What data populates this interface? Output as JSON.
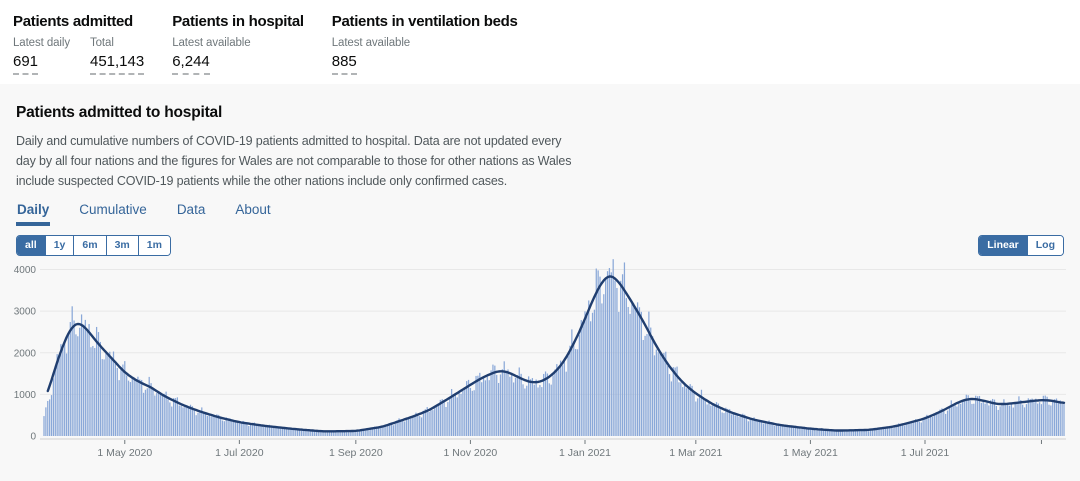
{
  "accent_color": "#3a6ca3",
  "header_metrics": [
    {
      "title": "Patients admitted",
      "stats": [
        {
          "label": "Latest daily",
          "value": "691"
        },
        {
          "label": "Total",
          "value": "451,143"
        }
      ]
    },
    {
      "title": "Patients in hospital",
      "stats": [
        {
          "label": "Latest available",
          "value": "6,244"
        }
      ]
    },
    {
      "title": "Patients in ventilation beds",
      "stats": [
        {
          "label": "Latest available",
          "value": "885"
        }
      ]
    }
  ],
  "card": {
    "title": "Patients admitted to hospital",
    "description": "Daily and cumulative numbers of COVID-19 patients admitted to hospital. Data are not updated every day by all four nations and the figures for Wales are not comparable to those for other nations as Wales include suspected COVID-19 patients while the other nations include only confirmed cases.",
    "tabs": [
      {
        "label": "Daily",
        "active": true
      },
      {
        "label": "Cumulative",
        "active": false
      },
      {
        "label": "Data",
        "active": false
      },
      {
        "label": "About",
        "active": false
      }
    ],
    "range_buttons": [
      {
        "label": "all",
        "active": true
      },
      {
        "label": "1y",
        "active": false
      },
      {
        "label": "6m",
        "active": false
      },
      {
        "label": "3m",
        "active": false
      },
      {
        "label": "1m",
        "active": false
      }
    ],
    "scale_buttons": [
      {
        "label": "Linear",
        "active": true
      },
      {
        "label": "Log",
        "active": false
      }
    ]
  },
  "chart_data": {
    "type": "bar",
    "subtype": "daily bars with 7-day average trend line",
    "title": "Patients admitted to hospital (Daily, all time)",
    "grid": true,
    "x_axis": {
      "start_date": "2020-03-19",
      "end_date": "2021-09-13",
      "ticks": [
        {
          "date": "2020-05-01",
          "label": "1 May 2020"
        },
        {
          "date": "2020-07-01",
          "label": "1 Jul 2020"
        },
        {
          "date": "2020-09-01",
          "label": "1 Sep 2020"
        },
        {
          "date": "2020-11-01",
          "label": "1 Nov 2020"
        },
        {
          "date": "2021-01-01",
          "label": "1 Jan 2021"
        },
        {
          "date": "2021-03-01",
          "label": "1 Mar 2021"
        },
        {
          "date": "2021-05-01",
          "label": "1 May 2021"
        },
        {
          "date": "2021-07-01",
          "label": "1 Jul 2021"
        },
        {
          "date": "2021-09-01",
          "label": ""
        }
      ]
    },
    "y_axis": {
      "ticks": [
        0,
        1000,
        2000,
        3000,
        4000
      ],
      "max": 4230
    },
    "series": [
      {
        "name": "Daily admissions",
        "type": "bar",
        "color": "#8aa8d8",
        "note": "daily bars fluctuate around the trend line; rendered from trend with weekday variation"
      },
      {
        "name": "7-day average trend",
        "type": "line",
        "color": "#203e6f",
        "points": [
          [
            "2020-03-19",
            700
          ],
          [
            "2020-03-21",
            1050
          ],
          [
            "2020-03-24",
            1500
          ],
          [
            "2020-03-28",
            2050
          ],
          [
            "2020-04-01",
            2500
          ],
          [
            "2020-04-05",
            2740
          ],
          [
            "2020-04-08",
            2700
          ],
          [
            "2020-04-12",
            2500
          ],
          [
            "2020-04-16",
            2260
          ],
          [
            "2020-04-20",
            2060
          ],
          [
            "2020-04-24",
            1870
          ],
          [
            "2020-05-01",
            1520
          ],
          [
            "2020-05-08",
            1310
          ],
          [
            "2020-05-15",
            1170
          ],
          [
            "2020-05-22",
            960
          ],
          [
            "2020-06-01",
            740
          ],
          [
            "2020-06-10",
            590
          ],
          [
            "2020-06-20",
            450
          ],
          [
            "2020-07-01",
            330
          ],
          [
            "2020-07-15",
            240
          ],
          [
            "2020-08-01",
            160
          ],
          [
            "2020-08-15",
            110
          ],
          [
            "2020-09-01",
            120
          ],
          [
            "2020-09-15",
            220
          ],
          [
            "2020-10-01",
            460
          ],
          [
            "2020-10-10",
            620
          ],
          [
            "2020-10-20",
            890
          ],
          [
            "2020-11-01",
            1230
          ],
          [
            "2020-11-08",
            1420
          ],
          [
            "2020-11-16",
            1570
          ],
          [
            "2020-11-21",
            1540
          ],
          [
            "2020-11-27",
            1400
          ],
          [
            "2020-12-02",
            1300
          ],
          [
            "2020-12-07",
            1280
          ],
          [
            "2020-12-12",
            1380
          ],
          [
            "2020-12-17",
            1570
          ],
          [
            "2020-12-22",
            1870
          ],
          [
            "2020-12-27",
            2310
          ],
          [
            "2020-12-31",
            2700
          ],
          [
            "2021-01-04",
            3150
          ],
          [
            "2021-01-08",
            3550
          ],
          [
            "2021-01-12",
            3830
          ],
          [
            "2021-01-15",
            3880
          ],
          [
            "2021-01-19",
            3710
          ],
          [
            "2021-01-24",
            3360
          ],
          [
            "2021-02-01",
            2760
          ],
          [
            "2021-02-08",
            2150
          ],
          [
            "2021-02-15",
            1660
          ],
          [
            "2021-02-22",
            1280
          ],
          [
            "2021-03-01",
            1020
          ],
          [
            "2021-03-10",
            760
          ],
          [
            "2021-03-20",
            560
          ],
          [
            "2021-04-01",
            390
          ],
          [
            "2021-04-15",
            260
          ],
          [
            "2021-05-01",
            175
          ],
          [
            "2021-05-15",
            130
          ],
          [
            "2021-06-01",
            145
          ],
          [
            "2021-06-15",
            230
          ],
          [
            "2021-07-01",
            420
          ],
          [
            "2021-07-10",
            600
          ],
          [
            "2021-07-20",
            840
          ],
          [
            "2021-07-26",
            905
          ],
          [
            "2021-08-02",
            840
          ],
          [
            "2021-08-09",
            760
          ],
          [
            "2021-08-16",
            780
          ],
          [
            "2021-08-23",
            820
          ],
          [
            "2021-09-01",
            865
          ],
          [
            "2021-09-07",
            850
          ],
          [
            "2021-09-13",
            780
          ]
        ]
      }
    ],
    "notable_values": {
      "first_wave_peak_daily_bar": 3100,
      "first_wave_peak_trend": 2740,
      "nov_2020_local_peak_trend": 1570,
      "jan_2021_peak_daily_bar": 4150,
      "jan_2021_peak_trend": 3880,
      "latest_daily": 691
    },
    "axis_text_color": "#6f777b",
    "gridline_color": "#e8e8e8",
    "axisline_color": "#cfcfcf"
  }
}
